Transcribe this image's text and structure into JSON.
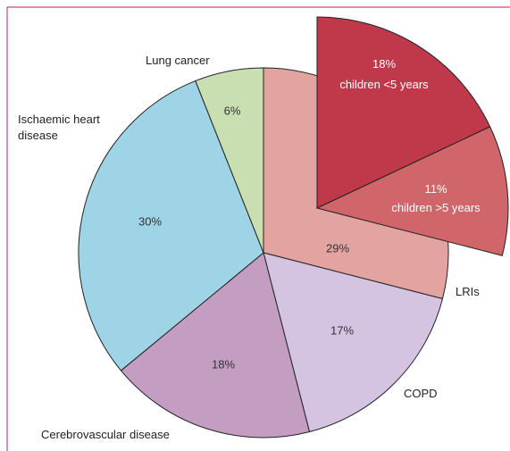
{
  "chart_data": {
    "type": "pie",
    "categories": [
      "LRIs",
      "COPD",
      "Cerebrovascular disease",
      "Ischaemic heart disease",
      "Lung cancer"
    ],
    "values": [
      29,
      17,
      18,
      30,
      6
    ],
    "value_labels": [
      "29%",
      "17%",
      "18%",
      "30%",
      "6%"
    ],
    "colors": [
      "#e3a4a1",
      "#d4c4e1",
      "#c49ec2",
      "#9fd4e6",
      "#c9dfb1"
    ],
    "sub_categories": [
      "children <5 years",
      "children >5 years"
    ],
    "sub_values": [
      18,
      11
    ],
    "sub_value_labels": [
      "18%",
      "11%"
    ],
    "sub_colors": [
      "#c0394b",
      "#d0666a"
    ]
  }
}
